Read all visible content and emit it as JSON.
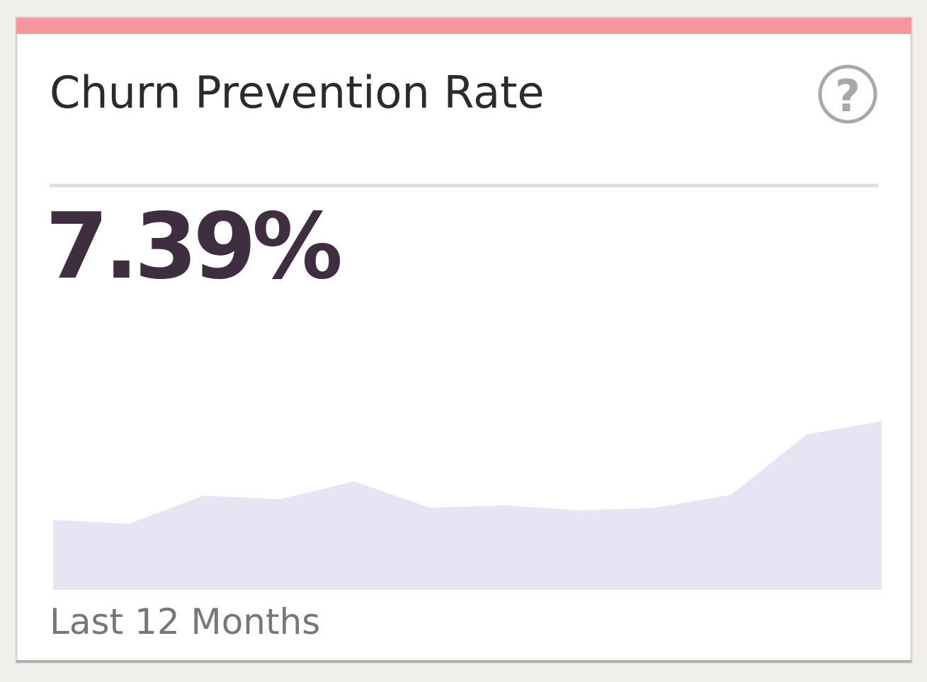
{
  "card": {
    "title": "Churn Prevention Rate",
    "kpi": "7.39%",
    "period": "Last 12 Months"
  },
  "chart_data": {
    "type": "area",
    "color": "#e6e5f3",
    "values": [
      3.07,
      2.89,
      4.13,
      3.97,
      4.75,
      3.6,
      3.7,
      3.48,
      3.6,
      4.16,
      6.8,
      7.39
    ],
    "ylim": [
      0,
      12
    ]
  }
}
